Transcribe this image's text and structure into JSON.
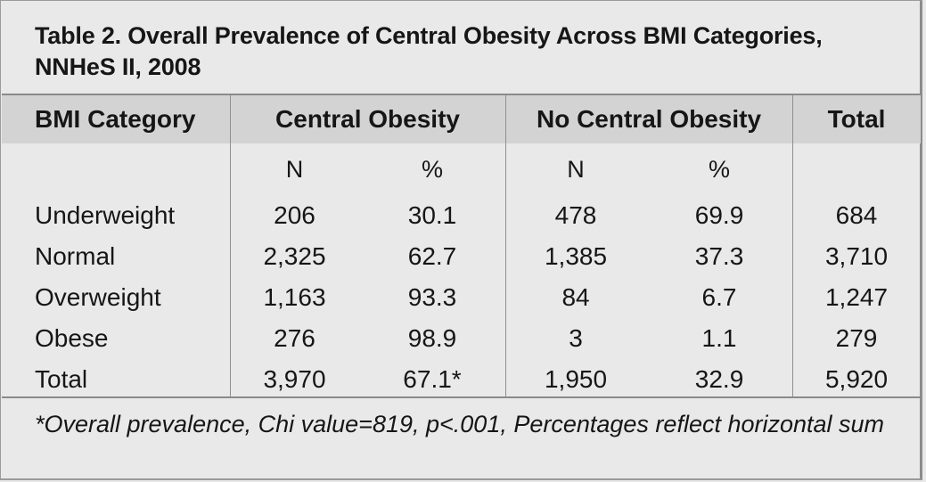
{
  "table": {
    "title": "Table 2. Overall Prevalence of Central Obesity Across BMI Categories, NNHeS II, 2008",
    "headers": {
      "category": "BMI Category",
      "central": "Central Obesity",
      "no_central": "No Central Obesity",
      "total": "Total"
    },
    "subheaders": {
      "n1": "N",
      "pct1": "%",
      "n2": "N",
      "pct2": "%"
    },
    "rows": [
      {
        "category": "Underweight",
        "co_n": "206",
        "co_pct": "30.1",
        "nco_n": "478",
        "nco_pct": "69.9",
        "total": "684"
      },
      {
        "category": "Normal",
        "co_n": "2,325",
        "co_pct": "62.7",
        "nco_n": "1,385",
        "nco_pct": "37.3",
        "total": "3,710"
      },
      {
        "category": "Overweight",
        "co_n": "1,163",
        "co_pct": "93.3",
        "nco_n": "84",
        "nco_pct": "6.7",
        "total": "1,247"
      },
      {
        "category": "Obese",
        "co_n": "276",
        "co_pct": "98.9",
        "nco_n": "3",
        "nco_pct": "1.1",
        "total": "279"
      },
      {
        "category": "Total",
        "co_n": "3,970",
        "co_pct": "67.1*",
        "nco_n": "1,950",
        "nco_pct": "32.9",
        "total": "5,920"
      }
    ],
    "footnote": "*Overall prevalence, Chi value=819, p<.001, Percentages reflect horizontal sum"
  },
  "colors": {
    "background": "#e9e9e9",
    "header_band": "#d3d3d3",
    "rule": "#8a8a8a",
    "text": "#161616"
  }
}
